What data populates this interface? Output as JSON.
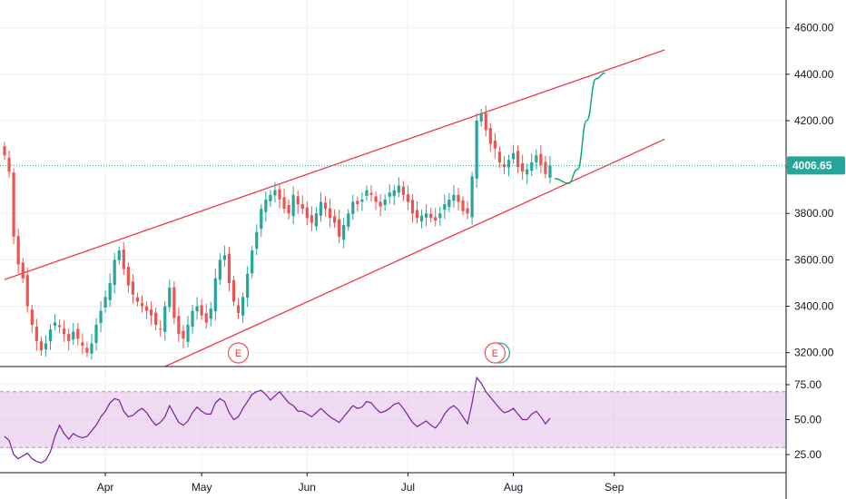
{
  "chart_data": {
    "type": "candlestick",
    "colors": {
      "up": "#26a69a",
      "down": "#ef5350",
      "channel": "#f23645",
      "rsi_line": "#7b1fa2",
      "rsi_band": "#e1bee7",
      "projection": "#00a86b",
      "last_price_line": "#26a69a",
      "grid": "#eef0f3"
    },
    "price_axis": {
      "ticks": [
        "4600.00",
        "4400.00",
        "4200.00",
        "4000.00",
        "3800.00",
        "3600.00",
        "3400.00",
        "3200.00"
      ],
      "range": [
        3140,
        4720
      ]
    },
    "rsi_axis": {
      "ticks": [
        "75.00",
        "50.00",
        "25.00"
      ],
      "range": [
        12,
        88
      ],
      "band": [
        30,
        70
      ]
    },
    "x_axis": {
      "labels": [
        "Apr",
        "May",
        "Jun",
        "Jul",
        "Aug",
        "Sep"
      ],
      "label_index": [
        22,
        43,
        66,
        88,
        111,
        133
      ]
    },
    "last_price": {
      "value": 4006.65,
      "label": "4006.65"
    },
    "earnings_markers": [
      {
        "label": "E",
        "index": 51
      },
      {
        "label": "E",
        "index": 107
      }
    ],
    "channel": {
      "upper": [
        [
          0,
          3515
        ],
        [
          144,
          4505
        ]
      ],
      "lower": [
        [
          35,
          3140
        ],
        [
          144,
          4120
        ]
      ]
    },
    "projection": [
      [
        120,
        3950
      ],
      [
        123,
        3930
      ],
      [
        125,
        3990
      ],
      [
        127,
        4200
      ],
      [
        129,
        4380
      ],
      [
        131,
        4405
      ]
    ],
    "close": [
      4050,
      3980,
      3700,
      3580,
      3520,
      3400,
      3320,
      3250,
      3210,
      3240,
      3300,
      3330,
      3310,
      3280,
      3250,
      3290,
      3260,
      3230,
      3200,
      3240,
      3320,
      3380,
      3440,
      3500,
      3600,
      3640,
      3560,
      3490,
      3450,
      3420,
      3400,
      3380,
      3360,
      3320,
      3300,
      3400,
      3480,
      3350,
      3280,
      3260,
      3320,
      3380,
      3400,
      3360,
      3330,
      3390,
      3520,
      3600,
      3620,
      3500,
      3420,
      3370,
      3440,
      3540,
      3640,
      3720,
      3820,
      3860,
      3880,
      3900,
      3860,
      3820,
      3800,
      3880,
      3840,
      3820,
      3780,
      3760,
      3800,
      3850,
      3820,
      3780,
      3760,
      3700,
      3750,
      3800,
      3850,
      3840,
      3860,
      3900,
      3880,
      3850,
      3830,
      3860,
      3890,
      3900,
      3920,
      3880,
      3850,
      3800,
      3780,
      3790,
      3800,
      3780,
      3770,
      3800,
      3840,
      3860,
      3880,
      3850,
      3810,
      3800,
      3960,
      4200,
      4230,
      4160,
      4100,
      4080,
      4020,
      4000,
      4030,
      4060,
      4000,
      3980,
      3990,
      4020,
      4050,
      4010,
      3970,
      4006.65
    ],
    "rsi": [
      38,
      35,
      25,
      22,
      24,
      26,
      22,
      20,
      19,
      21,
      27,
      38,
      46,
      40,
      36,
      40,
      38,
      37,
      38,
      42,
      46,
      52,
      56,
      62,
      65,
      64,
      56,
      52,
      53,
      56,
      58,
      55,
      50,
      46,
      48,
      52,
      60,
      54,
      48,
      46,
      49,
      55,
      59,
      56,
      54,
      54,
      62,
      65,
      63,
      55,
      50,
      52,
      58,
      63,
      68,
      70,
      71,
      68,
      64,
      67,
      70,
      66,
      62,
      60,
      56,
      56,
      54,
      52,
      55,
      58,
      55,
      52,
      50,
      48,
      52,
      56,
      60,
      58,
      59,
      63,
      62,
      58,
      55,
      56,
      58,
      61,
      62,
      58,
      53,
      48,
      45,
      47,
      49,
      46,
      44,
      48,
      54,
      58,
      60,
      57,
      52,
      47,
      62,
      80,
      76,
      70,
      66,
      62,
      58,
      55,
      56,
      58,
      54,
      50,
      50,
      54,
      56,
      52,
      47,
      51
    ]
  }
}
